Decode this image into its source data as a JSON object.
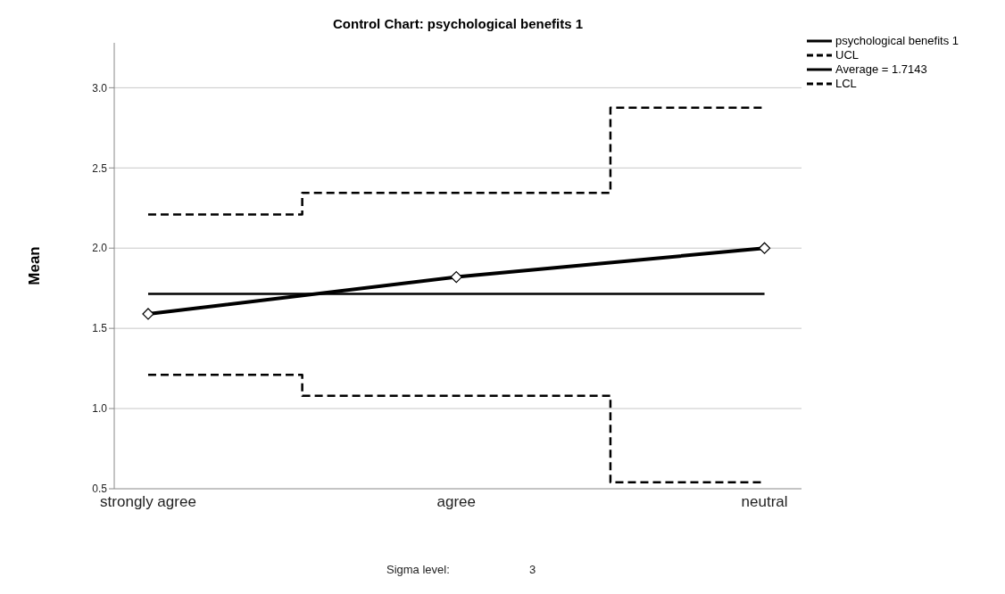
{
  "chart_data": {
    "type": "line",
    "title": "Control Chart: psychological benefits 1",
    "ylabel": "Mean",
    "categories": [
      "strongly agree",
      "agree",
      "neutral"
    ],
    "series": [
      {
        "name": "psychological benefits 1",
        "color": "#000000",
        "values": [
          1.59,
          1.82,
          2.0
        ],
        "marker": "diamond",
        "line_style": "solid"
      },
      {
        "name": "UCL",
        "type": "step",
        "color": "#000000",
        "values": [
          2.21,
          2.345,
          2.875
        ],
        "line_style": "dashed"
      },
      {
        "name": "Average = 1.7143",
        "color": "#000000",
        "values": [
          1.7143,
          1.7143,
          1.7143
        ],
        "line_style": "solid"
      },
      {
        "name": "LCL",
        "type": "step",
        "color": "#000000",
        "values": [
          1.21,
          1.08,
          0.54
        ],
        "line_style": "dashed"
      }
    ],
    "ylim": [
      0.5,
      3.28
    ],
    "yticks": [
      0.5,
      {
        "value": 1,
        "label": "1.0"
      },
      1.5,
      {
        "value": 2,
        "label": "2.0"
      },
      2.5,
      {
        "value": 3,
        "label": "3.0"
      }
    ],
    "grid": "y",
    "legend": "top right",
    "annotations": [
      "Sigma level:",
      "3"
    ]
  }
}
